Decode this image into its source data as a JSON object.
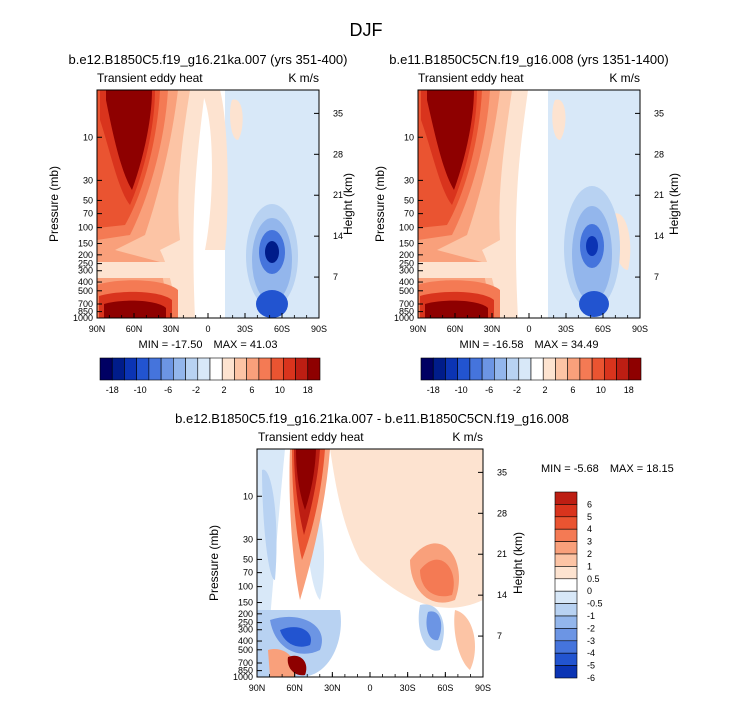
{
  "page": {
    "title": "DJF"
  },
  "colors": {
    "red_scale": [
      "#fde3d0",
      "#fcc4a5",
      "#f9a07b",
      "#f47a54",
      "#ea5431",
      "#d9341d",
      "#bd1e13",
      "#8e0000"
    ],
    "blue_scale": [
      "#d8e8f8",
      "#b8d2f2",
      "#93b6ec",
      "#6c95e4",
      "#4574dc",
      "#2254d0",
      "#0b34b4",
      "#001c8a",
      "#000063"
    ],
    "white": "#ffffff"
  },
  "chart_data": [
    {
      "type": "heatmap",
      "title": "b.e12.B1850C5.f19_g16.21ka.007 (yrs 351-400)",
      "left_label": "Transient eddy heat",
      "right_label": "K m/s",
      "xlabel": "",
      "ylabel": "Pressure (mb)",
      "ylabel_right": "Height (km)",
      "x_ticks": [
        "90N",
        "60N",
        "30N",
        "0",
        "30S",
        "60S",
        "90S"
      ],
      "y_ticks": [
        "10",
        "30",
        "50",
        "70",
        "100",
        "150",
        "200",
        "250",
        "300",
        "400",
        "500",
        "700",
        "850",
        "1000"
      ],
      "y_ticks_right": [
        "35",
        "28",
        "21",
        "14",
        "7"
      ],
      "stats": {
        "min_label": "MIN =",
        "min": "-17.50",
        "max_label": "MAX =",
        "max": "41.03"
      },
      "colorbar": {
        "orientation": "horizontal",
        "labels": [
          "-18",
          "-10",
          "-6",
          "-2",
          "2",
          "6",
          "10",
          "18"
        ],
        "levels": [
          -18,
          -14,
          -10,
          -8,
          -6,
          -4,
          -2,
          -1,
          0,
          1,
          2,
          4,
          6,
          8,
          10,
          14,
          18
        ]
      }
    },
    {
      "type": "heatmap",
      "title": "b.e11.B1850C5CN.f19_g16.008 (yrs 1351-1400)",
      "left_label": "Transient eddy heat",
      "right_label": "K m/s",
      "xlabel": "",
      "ylabel": "Pressure (mb)",
      "ylabel_right": "Height (km)",
      "x_ticks": [
        "90N",
        "60N",
        "30N",
        "0",
        "30S",
        "60S",
        "90S"
      ],
      "y_ticks": [
        "10",
        "30",
        "50",
        "70",
        "100",
        "150",
        "200",
        "250",
        "300",
        "400",
        "500",
        "700",
        "850",
        "1000"
      ],
      "y_ticks_right": [
        "35",
        "28",
        "21",
        "14",
        "7"
      ],
      "stats": {
        "min_label": "MIN =",
        "min": "-16.58",
        "max_label": "MAX =",
        "max": "34.49"
      },
      "colorbar": {
        "orientation": "horizontal",
        "labels": [
          "-18",
          "-10",
          "-6",
          "-2",
          "2",
          "6",
          "10",
          "18"
        ],
        "levels": [
          -18,
          -14,
          -10,
          -8,
          -6,
          -4,
          -2,
          -1,
          0,
          1,
          2,
          4,
          6,
          8,
          10,
          14,
          18
        ]
      }
    },
    {
      "type": "heatmap",
      "title": "b.e12.B1850C5.f19_g16.21ka.007 - b.e11.B1850C5CN.f19_g16.008",
      "left_label": "Transient eddy heat",
      "right_label": "K m/s",
      "xlabel": "",
      "ylabel": "Pressure (mb)",
      "ylabel_right": "Height (km)",
      "x_ticks": [
        "90N",
        "60N",
        "30N",
        "0",
        "30S",
        "60S",
        "90S"
      ],
      "y_ticks": [
        "10",
        "30",
        "50",
        "70",
        "100",
        "150",
        "200",
        "250",
        "300",
        "400",
        "500",
        "700",
        "850",
        "1000"
      ],
      "y_ticks_right": [
        "35",
        "28",
        "21",
        "14",
        "7"
      ],
      "stats": {
        "min_label": "MIN =",
        "min": "-5.68",
        "max_label": "MAX =",
        "max": "18.15"
      },
      "colorbar": {
        "orientation": "vertical",
        "labels": [
          "6",
          "5",
          "4",
          "3",
          "2",
          "1",
          "0.5",
          "0",
          "-0.5",
          "-1",
          "-2",
          "-3",
          "-4",
          "-5",
          "-6"
        ]
      }
    }
  ]
}
